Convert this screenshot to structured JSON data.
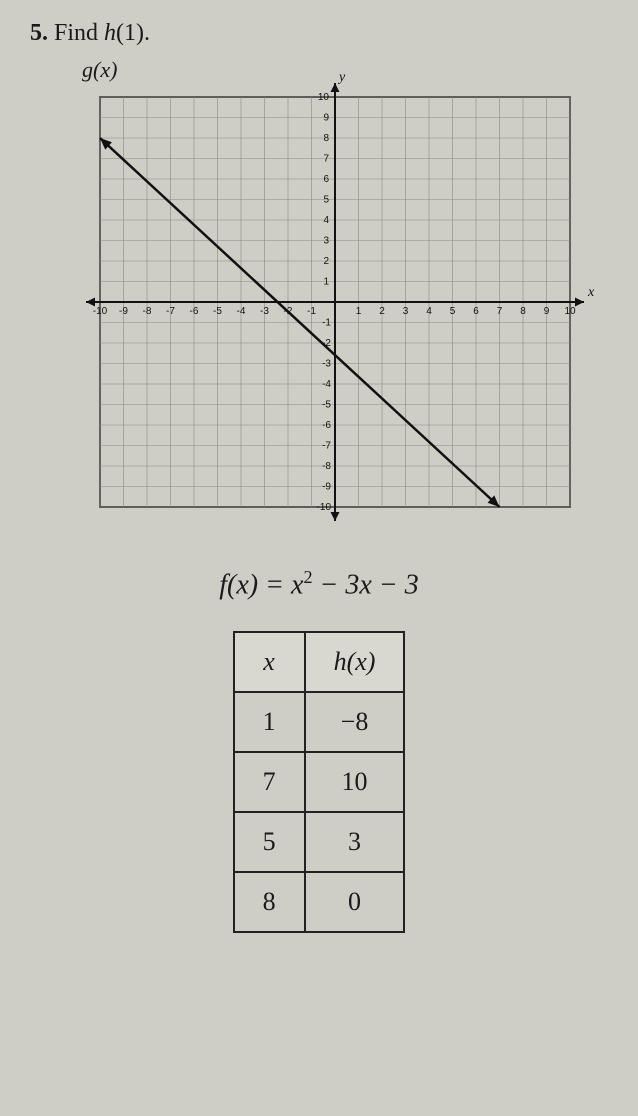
{
  "problem": {
    "number": "5.",
    "text_before": "Find ",
    "fn": "h",
    "arg": "(1)."
  },
  "graph": {
    "g_label": "g(x)",
    "y_letter": "y",
    "x_letter": "x",
    "xlim": [
      -10,
      10
    ],
    "ylim": [
      -10,
      10
    ],
    "tick_step": 1,
    "grid_color": "#8a8a84",
    "axis_color": "#111111",
    "line_color": "#111111",
    "line_width": 2.5,
    "background": "#cecdc6",
    "line_points": [
      {
        "x": -10,
        "y": 8
      },
      {
        "x": 7,
        "y": -10
      }
    ],
    "arrow_size": 9,
    "x_tick_labels": [
      "-10",
      "-9",
      "-8",
      "-7",
      "-6",
      "-5",
      "-4",
      "-3",
      "-2",
      "-1",
      "",
      "1",
      "2",
      "3",
      "4",
      "5",
      "6",
      "7",
      "8",
      "9",
      "10"
    ],
    "y_tick_labels_pos": [
      "10",
      "9",
      "8",
      "7",
      "6",
      "5",
      "4",
      "3",
      "2",
      "1"
    ],
    "y_tick_labels_neg": [
      "-1",
      "-2",
      "-3",
      "-4",
      "-5",
      "-6",
      "-7",
      "-8",
      "-9",
      "-10"
    ]
  },
  "equation": {
    "lhs": "f(x)",
    "rhs_a": "x",
    "rhs_exp": "2",
    "rhs_tail": " − 3x − 3"
  },
  "table": {
    "col1": "x",
    "col2": "h(x)",
    "rows": [
      {
        "x": "1",
        "h": "−8"
      },
      {
        "x": "7",
        "h": "10"
      },
      {
        "x": "5",
        "h": "3"
      },
      {
        "x": "8",
        "h": "0"
      }
    ]
  }
}
